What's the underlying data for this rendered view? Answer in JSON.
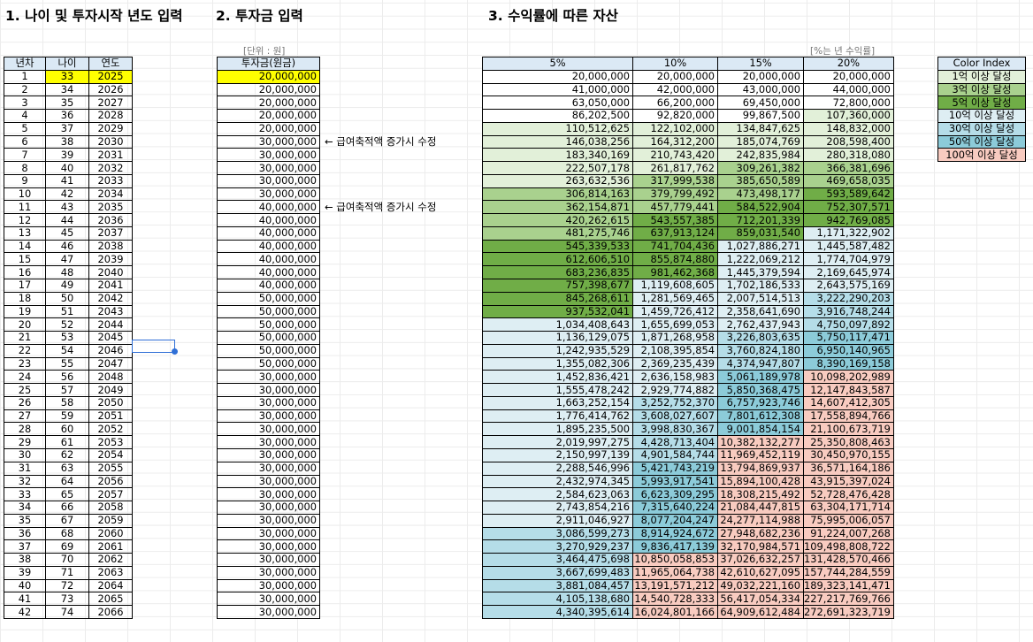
{
  "headings": {
    "age_input": "1. 나이 및 투자시작 년도 입력",
    "investment_input": "2. 투자금 입력",
    "assets": "3. 수익률에 따른 자산"
  },
  "units": {
    "investment": "[단위 : 원]",
    "assets": "[%는 년 수익률]"
  },
  "table1": {
    "headers": [
      "년차",
      "나이",
      "연도"
    ],
    "rows": [
      [
        "1",
        "33",
        "2025"
      ],
      [
        "2",
        "34",
        "2026"
      ],
      [
        "3",
        "35",
        "2027"
      ],
      [
        "4",
        "36",
        "2028"
      ],
      [
        "5",
        "37",
        "2029"
      ],
      [
        "6",
        "38",
        "2030"
      ],
      [
        "7",
        "39",
        "2031"
      ],
      [
        "8",
        "40",
        "2032"
      ],
      [
        "9",
        "41",
        "2033"
      ],
      [
        "10",
        "42",
        "2034"
      ],
      [
        "11",
        "43",
        "2035"
      ],
      [
        "12",
        "44",
        "2036"
      ],
      [
        "13",
        "45",
        "2037"
      ],
      [
        "14",
        "46",
        "2038"
      ],
      [
        "15",
        "47",
        "2039"
      ],
      [
        "16",
        "48",
        "2040"
      ],
      [
        "17",
        "49",
        "2041"
      ],
      [
        "18",
        "50",
        "2042"
      ],
      [
        "19",
        "51",
        "2043"
      ],
      [
        "20",
        "52",
        "2044"
      ],
      [
        "21",
        "53",
        "2045"
      ],
      [
        "22",
        "54",
        "2046"
      ],
      [
        "23",
        "55",
        "2047"
      ],
      [
        "24",
        "56",
        "2048"
      ],
      [
        "25",
        "57",
        "2049"
      ],
      [
        "26",
        "58",
        "2050"
      ],
      [
        "27",
        "59",
        "2051"
      ],
      [
        "28",
        "60",
        "2052"
      ],
      [
        "29",
        "61",
        "2053"
      ],
      [
        "30",
        "62",
        "2054"
      ],
      [
        "31",
        "63",
        "2055"
      ],
      [
        "32",
        "64",
        "2056"
      ],
      [
        "33",
        "65",
        "2057"
      ],
      [
        "34",
        "66",
        "2058"
      ],
      [
        "35",
        "67",
        "2059"
      ],
      [
        "36",
        "68",
        "2060"
      ],
      [
        "37",
        "69",
        "2061"
      ],
      [
        "38",
        "70",
        "2062"
      ],
      [
        "39",
        "71",
        "2063"
      ],
      [
        "40",
        "72",
        "2064"
      ],
      [
        "41",
        "73",
        "2065"
      ],
      [
        "42",
        "74",
        "2066"
      ]
    ]
  },
  "table2": {
    "header": "투자금(원금)",
    "values": [
      "20,000,000",
      "20,000,000",
      "20,000,000",
      "20,000,000",
      "20,000,000",
      "30,000,000",
      "30,000,000",
      "30,000,000",
      "30,000,000",
      "30,000,000",
      "40,000,000",
      "40,000,000",
      "40,000,000",
      "40,000,000",
      "40,000,000",
      "40,000,000",
      "40,000,000",
      "50,000,000",
      "50,000,000",
      "50,000,000",
      "50,000,000",
      "50,000,000",
      "50,000,000",
      "30,000,000",
      "30,000,000",
      "30,000,000",
      "30,000,000",
      "30,000,000",
      "30,000,000",
      "30,000,000",
      "30,000,000",
      "30,000,000",
      "30,000,000",
      "30,000,000",
      "30,000,000",
      "30,000,000",
      "30,000,000",
      "30,000,000",
      "30,000,000",
      "30,000,000",
      "30,000,000",
      "30,000,000"
    ]
  },
  "notes": [
    {
      "row": 6,
      "text": "← 급여축적액 증가시 수정"
    },
    {
      "row": 11,
      "text": "← 급여축적액 증가시 수정"
    }
  ],
  "table3": {
    "headers": [
      "5%",
      "10%",
      "15%",
      "20%"
    ],
    "rows": [
      [
        "20,000,000",
        "20,000,000",
        "20,000,000",
        "20,000,000"
      ],
      [
        "41,000,000",
        "42,000,000",
        "43,000,000",
        "44,000,000"
      ],
      [
        "63,050,000",
        "66,200,000",
        "69,450,000",
        "72,800,000"
      ],
      [
        "86,202,500",
        "92,820,000",
        "99,867,500",
        "107,360,000"
      ],
      [
        "110,512,625",
        "122,102,000",
        "134,847,625",
        "148,832,000"
      ],
      [
        "146,038,256",
        "164,312,200",
        "185,074,769",
        "208,598,400"
      ],
      [
        "183,340,169",
        "210,743,420",
        "242,835,984",
        "280,318,080"
      ],
      [
        "222,507,178",
        "261,817,762",
        "309,261,382",
        "366,381,696"
      ],
      [
        "263,632,536",
        "317,999,538",
        "385,650,589",
        "469,658,035"
      ],
      [
        "306,814,163",
        "379,799,492",
        "473,498,177",
        "593,589,642"
      ],
      [
        "362,154,871",
        "457,779,441",
        "584,522,904",
        "752,307,571"
      ],
      [
        "420,262,615",
        "543,557,385",
        "712,201,339",
        "942,769,085"
      ],
      [
        "481,275,746",
        "637,913,124",
        "859,031,540",
        "1,171,322,902"
      ],
      [
        "545,339,533",
        "741,704,436",
        "1,027,886,271",
        "1,445,587,482"
      ],
      [
        "612,606,510",
        "855,874,880",
        "1,222,069,212",
        "1,774,704,979"
      ],
      [
        "683,236,835",
        "981,462,368",
        "1,445,379,594",
        "2,169,645,974"
      ],
      [
        "757,398,677",
        "1,119,608,605",
        "1,702,186,533",
        "2,643,575,169"
      ],
      [
        "845,268,611",
        "1,281,569,465",
        "2,007,514,513",
        "3,222,290,203"
      ],
      [
        "937,532,041",
        "1,459,726,412",
        "2,358,641,690",
        "3,916,748,244"
      ],
      [
        "1,034,408,643",
        "1,655,699,053",
        "2,762,437,943",
        "4,750,097,892"
      ],
      [
        "1,136,129,075",
        "1,871,268,958",
        "3,226,803,635",
        "5,750,117,471"
      ],
      [
        "1,242,935,529",
        "2,108,395,854",
        "3,760,824,180",
        "6,950,140,965"
      ],
      [
        "1,355,082,306",
        "2,369,235,439",
        "4,374,947,807",
        "8,390,169,158"
      ],
      [
        "1,452,836,421",
        "2,636,158,983",
        "5,061,189,978",
        "10,098,202,989"
      ],
      [
        "1,555,478,242",
        "2,929,774,882",
        "5,850,368,475",
        "12,147,843,587"
      ],
      [
        "1,663,252,154",
        "3,252,752,370",
        "6,757,923,746",
        "14,607,412,305"
      ],
      [
        "1,776,414,762",
        "3,608,027,607",
        "7,801,612,308",
        "17,558,894,766"
      ],
      [
        "1,895,235,500",
        "3,998,830,367",
        "9,001,854,154",
        "21,100,673,719"
      ],
      [
        "2,019,997,275",
        "4,428,713,404",
        "10,382,132,277",
        "25,350,808,463"
      ],
      [
        "2,150,997,139",
        "4,901,584,744",
        "11,969,452,119",
        "30,450,970,155"
      ],
      [
        "2,288,546,996",
        "5,421,743,219",
        "13,794,869,937",
        "36,571,164,186"
      ],
      [
        "2,432,974,345",
        "5,993,917,541",
        "15,894,100,428",
        "43,915,397,024"
      ],
      [
        "2,584,623,063",
        "6,623,309,295",
        "18,308,215,492",
        "52,728,476,428"
      ],
      [
        "2,743,854,216",
        "7,315,640,224",
        "21,084,447,815",
        "63,304,171,714"
      ],
      [
        "2,911,046,927",
        "8,077,204,247",
        "24,277,114,988",
        "75,995,006,057"
      ],
      [
        "3,086,599,273",
        "8,914,924,672",
        "27,948,682,236",
        "91,224,007,268"
      ],
      [
        "3,270,929,237",
        "9,836,417,139",
        "32,170,984,571",
        "109,498,808,722"
      ],
      [
        "3,464,475,698",
        "10,850,058,853",
        "37,026,632,257",
        "131,428,570,466"
      ],
      [
        "3,667,699,483",
        "11,965,064,738",
        "42,610,627,095",
        "157,744,284,559"
      ],
      [
        "3,881,084,457",
        "13,191,571,212",
        "49,032,221,160",
        "189,323,141,471"
      ],
      [
        "4,105,138,680",
        "14,540,728,333",
        "56,417,054,334",
        "227,217,769,766"
      ],
      [
        "4,340,395,614",
        "16,024,801,166",
        "64,909,612,484",
        "272,691,323,719"
      ]
    ]
  },
  "legend": {
    "title": "Color Index",
    "items": [
      {
        "label": "1억 이상 달성",
        "color": "#e2f0d9"
      },
      {
        "label": "3억 이상 달성",
        "color": "#a9d18e"
      },
      {
        "label": "5억 이상 달성",
        "color": "#70ad47"
      },
      {
        "label": "10억 이상 달성",
        "color": "#deeef3"
      },
      {
        "label": "30억 이상 달성",
        "color": "#b5dde8"
      },
      {
        "label": "50억 이상 달성",
        "color": "#8ccbd9"
      },
      {
        "label": "100억 이상 달성",
        "color": "#f8cbc0"
      }
    ]
  },
  "colors": {
    "header": "#dbe9f5",
    "highlight": "#ffff00",
    "selection": "#2f6fd6"
  }
}
